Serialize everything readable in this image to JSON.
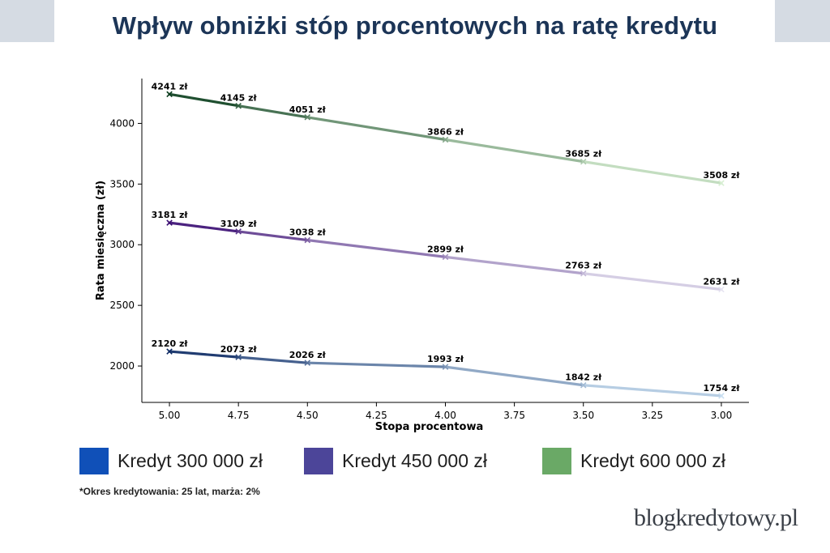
{
  "header": {
    "title": "Wpływ obniżki stóp procentowych na ratę kredytu"
  },
  "chart_data": {
    "type": "line",
    "xlabel": "Stopa procentowa",
    "ylabel": "Rata miesięczna (zł)",
    "x": [
      5.0,
      4.75,
      4.5,
      4.0,
      3.5,
      3.0
    ],
    "x_ticks": [
      "5.00",
      "4.75",
      "4.50",
      "4.25",
      "4.00",
      "3.75",
      "3.50",
      "3.25",
      "3.00"
    ],
    "x_tick_values": [
      5.0,
      4.75,
      4.5,
      4.25,
      4.0,
      3.75,
      3.5,
      3.25,
      3.0
    ],
    "xlim": [
      5.1,
      2.9
    ],
    "y_ticks": [
      2000,
      2500,
      3000,
      3500,
      4000
    ],
    "ylim": [
      1700,
      4370
    ],
    "series": [
      {
        "name": "Kredyt 300 000 zł",
        "values": [
          2120,
          2073,
          2026,
          1993,
          1842,
          1754
        ],
        "labels": [
          "2120 zł",
          "2073 zł",
          "2026 zł",
          "1993 zł",
          "1842 zł",
          "1754 zł"
        ],
        "color_start": "#0d2a63",
        "color_end": "#c9dff1"
      },
      {
        "name": "Kredyt 450 000 zł",
        "values": [
          3181,
          3109,
          3038,
          2899,
          2763,
          2631
        ],
        "labels": [
          "3181 zł",
          "3109 zł",
          "3038 zł",
          "2899 zł",
          "2763 zł",
          "2631 zł"
        ],
        "color_start": "#3a0c72",
        "color_end": "#e6e4f1"
      },
      {
        "name": "Kredyt 600 000 zł",
        "values": [
          4241,
          4145,
          4051,
          3866,
          3685,
          3508
        ],
        "labels": [
          "4241 zł",
          "4145 zł",
          "4051 zł",
          "3866 zł",
          "3685 zł",
          "3508 zł"
        ],
        "color_start": "#0b3d1e",
        "color_end": "#d7efd2"
      }
    ]
  },
  "legend": {
    "items": [
      {
        "label": "Kredyt 300 000 zł",
        "color": "#1050b8"
      },
      {
        "label": "Kredyt 450 000 zł",
        "color": "#4c4599"
      },
      {
        "label": "Kredyt 600 000 zł",
        "color": "#6aa966"
      }
    ]
  },
  "footnote": "*Okres kredytowania: 25 lat, marża: 2%",
  "logo": "blogkredytowy.pl"
}
